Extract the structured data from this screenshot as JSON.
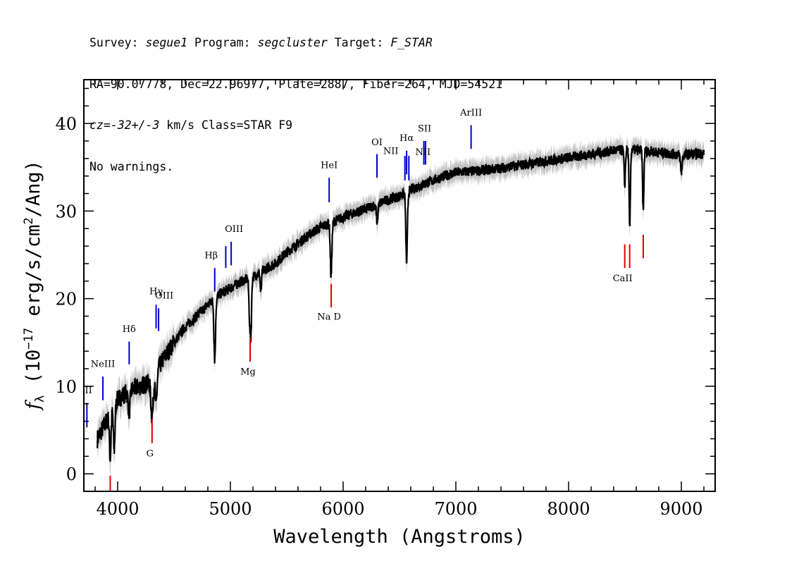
{
  "header": {
    "line1": {
      "survey_label": "Survey: ",
      "survey": "segue1",
      "program_label": " Program: ",
      "program": "segcluster",
      "target_label": " Target: ",
      "target": "F_STAR"
    },
    "line2": "RA=90.07778, Dec=22.96977, Plate=2887, Fiber=264, MJD=54521",
    "line3": {
      "cz": "cz=-32+/-3",
      "rest": " km/s Class=STAR F9"
    },
    "line4": "No warnings."
  },
  "chart_data": {
    "type": "line",
    "xlabel": "Wavelength (Angstroms)",
    "ylabel": "f_λ (10^-17 erg/s/cm^2/Ang)",
    "ylabel_parts": {
      "f": "f",
      "sub": "λ",
      "pre": " (10",
      "exp1": "−17",
      "mid": " erg/s/cm",
      "exp2": "2",
      "post": "/Ang)"
    },
    "xlim": [
      3700,
      9300
    ],
    "ylim": [
      -2,
      45
    ],
    "x_ticks": [
      4000,
      5000,
      6000,
      7000,
      8000,
      9000
    ],
    "y_ticks": [
      0,
      10,
      20,
      30,
      40
    ],
    "grid": false,
    "colors": {
      "spectrum": "#000000",
      "error_band": "#c0c0c0",
      "emission": "#0000cc",
      "absorption": "#dd0000"
    },
    "continuum": [
      [
        3820,
        4
      ],
      [
        3900,
        6
      ],
      [
        4000,
        8.5
      ],
      [
        4100,
        9.5
      ],
      [
        4200,
        10
      ],
      [
        4300,
        10.5
      ],
      [
        4400,
        13
      ],
      [
        4500,
        15
      ],
      [
        4600,
        16.8
      ],
      [
        4700,
        18
      ],
      [
        4800,
        19.3
      ],
      [
        4900,
        20.5
      ],
      [
        5000,
        21.2
      ],
      [
        5100,
        22
      ],
      [
        5200,
        22.5
      ],
      [
        5300,
        23.3
      ],
      [
        5400,
        24
      ],
      [
        5500,
        25.3
      ],
      [
        5600,
        26.3
      ],
      [
        5700,
        27.3
      ],
      [
        5800,
        28.2
      ],
      [
        5900,
        28.7
      ],
      [
        6000,
        29.3
      ],
      [
        6100,
        29.8
      ],
      [
        6200,
        30.2
      ],
      [
        6300,
        30.8
      ],
      [
        6400,
        31.3
      ],
      [
        6500,
        31.7
      ],
      [
        6600,
        32.4
      ],
      [
        6700,
        33
      ],
      [
        6800,
        33.5
      ],
      [
        6900,
        34
      ],
      [
        7000,
        34.4
      ],
      [
        7200,
        34.6
      ],
      [
        7400,
        34.9
      ],
      [
        7600,
        35.3
      ],
      [
        7800,
        35.7
      ],
      [
        8000,
        36.1
      ],
      [
        8200,
        36.5
      ],
      [
        8400,
        36.9
      ],
      [
        8600,
        37
      ],
      [
        8800,
        36.7
      ],
      [
        9000,
        36.4
      ],
      [
        9200,
        36.6
      ]
    ],
    "absorption_features": [
      {
        "x": 3934,
        "depth": 5,
        "width": 10
      },
      {
        "x": 3969,
        "depth": 5,
        "width": 10
      },
      {
        "x": 4102,
        "depth": 2.5,
        "width": 12
      },
      {
        "x": 4305,
        "depth": 4,
        "width": 14
      },
      {
        "x": 4341,
        "depth": 3.5,
        "width": 12
      },
      {
        "x": 4861,
        "depth": 7,
        "width": 10
      },
      {
        "x": 5172,
        "depth": 5,
        "width": 10
      },
      {
        "x": 5183,
        "depth": 5,
        "width": 8
      },
      {
        "x": 5270,
        "depth": 2.5,
        "width": 8
      },
      {
        "x": 5893,
        "depth": 6,
        "width": 10
      },
      {
        "x": 6302,
        "depth": 2.5,
        "width": 8
      },
      {
        "x": 6563,
        "depth": 8,
        "width": 10
      },
      {
        "x": 8498,
        "depth": 4,
        "width": 8
      },
      {
        "x": 8542,
        "depth": 9,
        "width": 8
      },
      {
        "x": 8662,
        "depth": 7,
        "width": 8
      },
      {
        "x": 9000,
        "depth": 2,
        "width": 10
      }
    ],
    "noise_amplitude": 0.6,
    "emission_lines": [
      {
        "label": "OII",
        "x": 3727,
        "y_low": 5.3,
        "y_high": 8.1,
        "label_y": 9.2,
        "label_dx": -3
      },
      {
        "label": "NeIII",
        "x": 3869,
        "y_low": 8.4,
        "y_high": 11.1,
        "label_y": 12.2,
        "label_dx": 0
      },
      {
        "label": "Hδ",
        "x": 4102,
        "y_low": 12.5,
        "y_high": 15.1,
        "label_y": 16.2,
        "label_dx": 0
      },
      {
        "label": "Hγ",
        "x": 4341,
        "y_low": 16.6,
        "y_high": 19.3,
        "label_y": 20.5,
        "label_dx": 0
      },
      {
        "label": "OIII",
        "x": 4363,
        "y_low": 16.3,
        "y_high": 18.9,
        "label_y": 20.0,
        "label_dx": 8
      },
      {
        "label": "Hβ",
        "x": 4861,
        "y_low": 20.8,
        "y_high": 23.5,
        "label_y": 24.6,
        "label_dx": -5
      },
      {
        "label": "",
        "x": 4959,
        "y_low": 23.5,
        "y_high": 26.0,
        "label_y": 0,
        "label_dx": 0
      },
      {
        "label": "OIII",
        "x": 5007,
        "y_low": 23.8,
        "y_high": 26.5,
        "label_y": 27.6,
        "label_dx": 4
      },
      {
        "label": "HeI",
        "x": 5876,
        "y_low": 31.0,
        "y_high": 33.8,
        "label_y": 34.9,
        "label_dx": 0
      },
      {
        "label": "OI",
        "x": 6300,
        "y_low": 33.8,
        "y_high": 36.5,
        "label_y": 37.5,
        "label_dx": 0
      },
      {
        "label": "NII",
        "x": 6548,
        "y_low": 33.5,
        "y_high": 36.3,
        "label_y": 36.5,
        "label_dx": -20
      },
      {
        "label": "Hα",
        "x": 6563,
        "y_low": 34.2,
        "y_high": 36.9,
        "label_y": 38.0,
        "label_dx": 0
      },
      {
        "label": "NII",
        "x": 6583,
        "y_low": 33.5,
        "y_high": 36.3,
        "label_y": 36.4,
        "label_dx": 20
      },
      {
        "label": "SII",
        "x": 6716,
        "y_low": 35.3,
        "y_high": 38.0,
        "label_y": 39.1,
        "label_dx": 1
      },
      {
        "label": "",
        "x": 6731,
        "y_low": 35.3,
        "y_high": 38.0,
        "label_y": 0,
        "label_dx": 0
      },
      {
        "label": "ArIII",
        "x": 7135,
        "y_low": 37.1,
        "y_high": 39.8,
        "label_y": 40.9,
        "label_dx": 0
      }
    ],
    "absorption_lines": [
      {
        "label": "",
        "x": 3934,
        "y_low": -2.0,
        "y_high": -0.2,
        "label_y": 0
      },
      {
        "label": "G",
        "x": 4305,
        "y_low": 3.5,
        "y_high": 6.3,
        "label_y": 2.0
      },
      {
        "label": "Mg",
        "x": 5175,
        "y_low": 12.8,
        "y_high": 15.5,
        "label_y": 11.3
      },
      {
        "label": "Na D",
        "x": 5894,
        "y_low": 19.0,
        "y_high": 21.7,
        "label_y": 17.6
      },
      {
        "label": "CaII",
        "x": 8498,
        "y_low": 23.5,
        "y_high": 26.2,
        "label_y": 22.0
      },
      {
        "label": "",
        "x": 8542,
        "y_low": 23.5,
        "y_high": 26.2,
        "label_y": 0
      },
      {
        "label": "",
        "x": 8662,
        "y_low": 24.6,
        "y_high": 27.3,
        "label_y": 0
      }
    ]
  }
}
